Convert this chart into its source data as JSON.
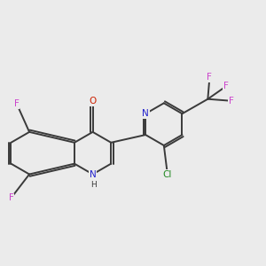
{
  "bg_color": "#ebebeb",
  "bond_color": "#3a3a3a",
  "bond_width": 1.4,
  "dbo": 0.055,
  "colors": {
    "N": "#2020cc",
    "O": "#cc2000",
    "F": "#cc44cc",
    "Cl": "#228822",
    "C": "#3a3a3a"
  },
  "fs": 7.5
}
